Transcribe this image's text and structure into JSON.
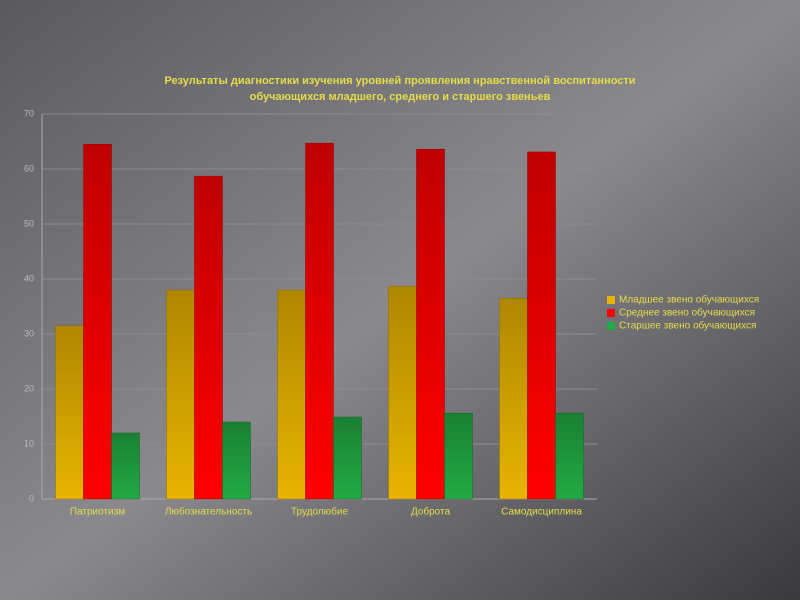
{
  "chart_data": {
    "type": "bar",
    "title": [
      "Результаты диагностики изучения уровней проявления нравственной воспитанности",
      "обучающихся младшего, среднего и старшего звеньев"
    ],
    "categories": [
      "Патриотизм",
      "Любознательность",
      "Трудолюбие",
      "Доброта",
      "Самодисциплина"
    ],
    "series": [
      {
        "name": "Младшее звено обучающихся",
        "color": "#e8b400",
        "values": [
          31.5,
          38,
          38,
          38.7,
          36.5
        ]
      },
      {
        "name": "Среднее звено обучающихся",
        "color": "#ff0000",
        "values": [
          64.5,
          58.7,
          64.7,
          63.6,
          63.1
        ]
      },
      {
        "name": "Старшее звено обучающихся",
        "color": "#22aa44",
        "values": [
          12,
          14,
          14.9,
          15.6,
          15.6
        ]
      }
    ],
    "ylim": [
      0,
      70
    ],
    "yticks": [
      0,
      10,
      20,
      30,
      40,
      50,
      60,
      70
    ],
    "grid": true,
    "legend": "right"
  }
}
